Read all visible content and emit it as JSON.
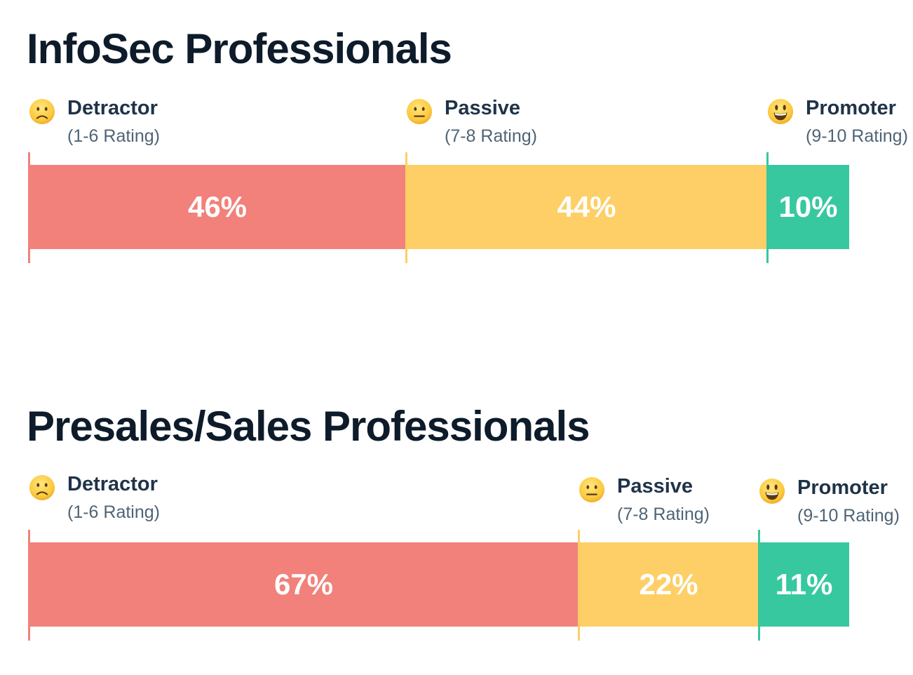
{
  "colors": {
    "detractor": "#f1817a",
    "passive": "#fdcf66",
    "promoter": "#37c8a0",
    "title": "#0d1b2a",
    "legend_name": "#1f3348",
    "legend_range": "#4f6476"
  },
  "chart_data": [
    {
      "type": "bar",
      "stacked": true,
      "orientation": "horizontal",
      "title": "InfoSec Professionals",
      "categories": [
        "Detractor",
        "Passive",
        "Promoter"
      ],
      "ranges": [
        "(1-6 Rating)",
        "(7-8 Rating)",
        "(9-10 Rating)"
      ],
      "icons": [
        "frowning-face-icon",
        "neutral-face-icon",
        "smiling-face-icon"
      ],
      "values": [
        46,
        44,
        10
      ],
      "data_labels": [
        "46%",
        "44%",
        "10%"
      ],
      "unit": "%",
      "xlim": [
        0,
        100
      ],
      "grid": false,
      "legend": "above-segments"
    },
    {
      "type": "bar",
      "stacked": true,
      "orientation": "horizontal",
      "title": "Presales/Sales Professionals",
      "categories": [
        "Detractor",
        "Passive",
        "Promoter"
      ],
      "ranges": [
        "(1-6 Rating)",
        "(7-8 Rating)",
        "(9-10 Rating)"
      ],
      "icons": [
        "frowning-face-icon",
        "neutral-face-icon",
        "smiling-face-icon"
      ],
      "values": [
        67,
        22,
        11
      ],
      "data_labels": [
        "67%",
        "22%",
        "11%"
      ],
      "unit": "%",
      "xlim": [
        0,
        100
      ],
      "grid": false,
      "legend": "above-segments"
    }
  ]
}
